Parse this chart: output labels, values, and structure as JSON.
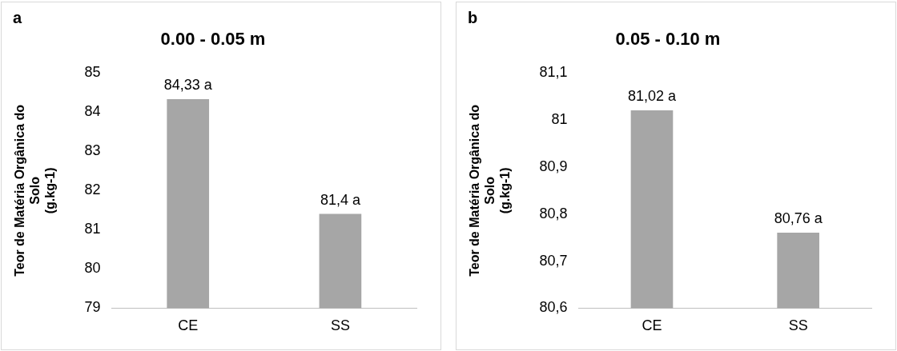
{
  "chart_data": [
    {
      "type": "bar",
      "title": "0.00 - 0.05 m",
      "ylabel": "Teor de Matéria Orgânica do\nSolo\n(g.kg-1)",
      "annotations": [
        "a"
      ],
      "categories": [
        "CE",
        "SS"
      ],
      "values": [
        84.33,
        81.4
      ],
      "value_labels": [
        "84,33 a",
        "81,4 a"
      ],
      "color": "#a6a6a6",
      "ylim": [
        79,
        85
      ],
      "yticks": [
        79,
        80,
        81,
        82,
        83,
        84,
        85
      ],
      "grid": false,
      "legend": false
    },
    {
      "type": "bar",
      "title": "0.05 - 0.10 m",
      "ylabel": "Teor de Matéria Orgânica do\nSolo\n(g.kg-1)",
      "annotations": [
        "b"
      ],
      "categories": [
        "CE",
        "SS"
      ],
      "values": [
        81.02,
        80.76
      ],
      "value_labels": [
        "81,02 a",
        "80,76 a"
      ],
      "color": "#a6a6a6",
      "ylim": [
        80.6,
        81.1
      ],
      "yticks": [
        {
          "value": 80.6,
          "label": "80,6"
        },
        {
          "value": 80.7,
          "label": "80,7"
        },
        {
          "value": 80.8,
          "label": "80,8"
        },
        {
          "value": 80.9,
          "label": "80,9"
        },
        {
          "value": 81,
          "label": "81"
        },
        {
          "value": 81.1,
          "label": "81,1"
        }
      ],
      "grid": false,
      "legend": false
    }
  ]
}
